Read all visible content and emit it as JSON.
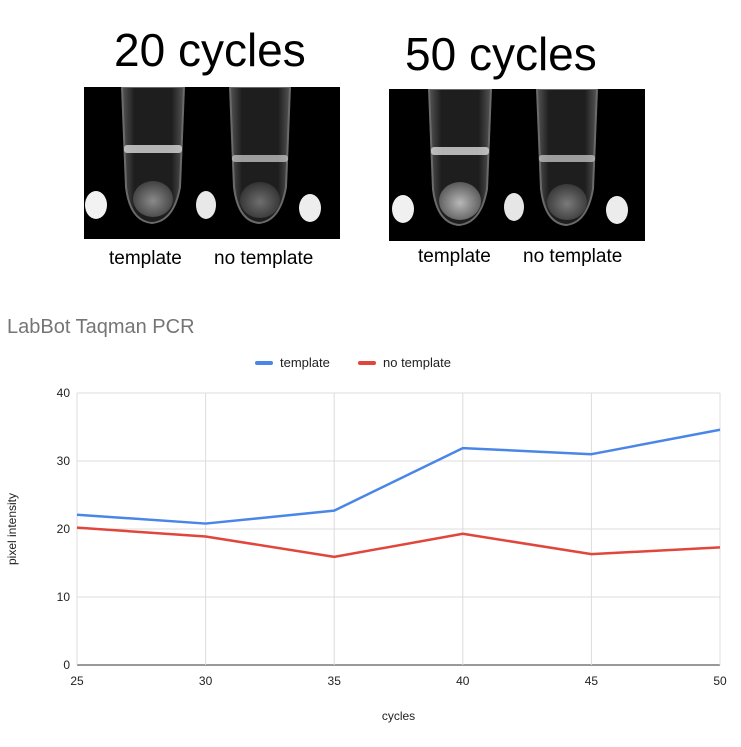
{
  "panels": [
    {
      "title": "20 cycles",
      "caption_left": "template",
      "caption_right": "no template"
    },
    {
      "title": "50 cycles",
      "caption_left": "template",
      "caption_right": "no template"
    }
  ],
  "colors": {
    "template": "#4a86e8",
    "no_template": "#e0463c",
    "grid": "#dcdcdc",
    "title": "#757575"
  },
  "chart_data": {
    "type": "line",
    "title": "LabBot Taqman PCR",
    "xlabel": "cycles",
    "ylabel": "pixel intensity",
    "x": [
      25,
      30,
      35,
      40,
      45,
      50
    ],
    "xlim": [
      25,
      50
    ],
    "ylim": [
      0,
      40
    ],
    "yticks": [
      0,
      10,
      20,
      30,
      40
    ],
    "grid": true,
    "legend": "top-center",
    "series": [
      {
        "name": "template",
        "color": "#4a86e8",
        "values": [
          22.1,
          20.8,
          22.7,
          31.9,
          31.0,
          34.6
        ]
      },
      {
        "name": "no template",
        "color": "#e0463c",
        "values": [
          20.2,
          18.9,
          15.9,
          19.3,
          16.3,
          17.3
        ]
      }
    ]
  }
}
